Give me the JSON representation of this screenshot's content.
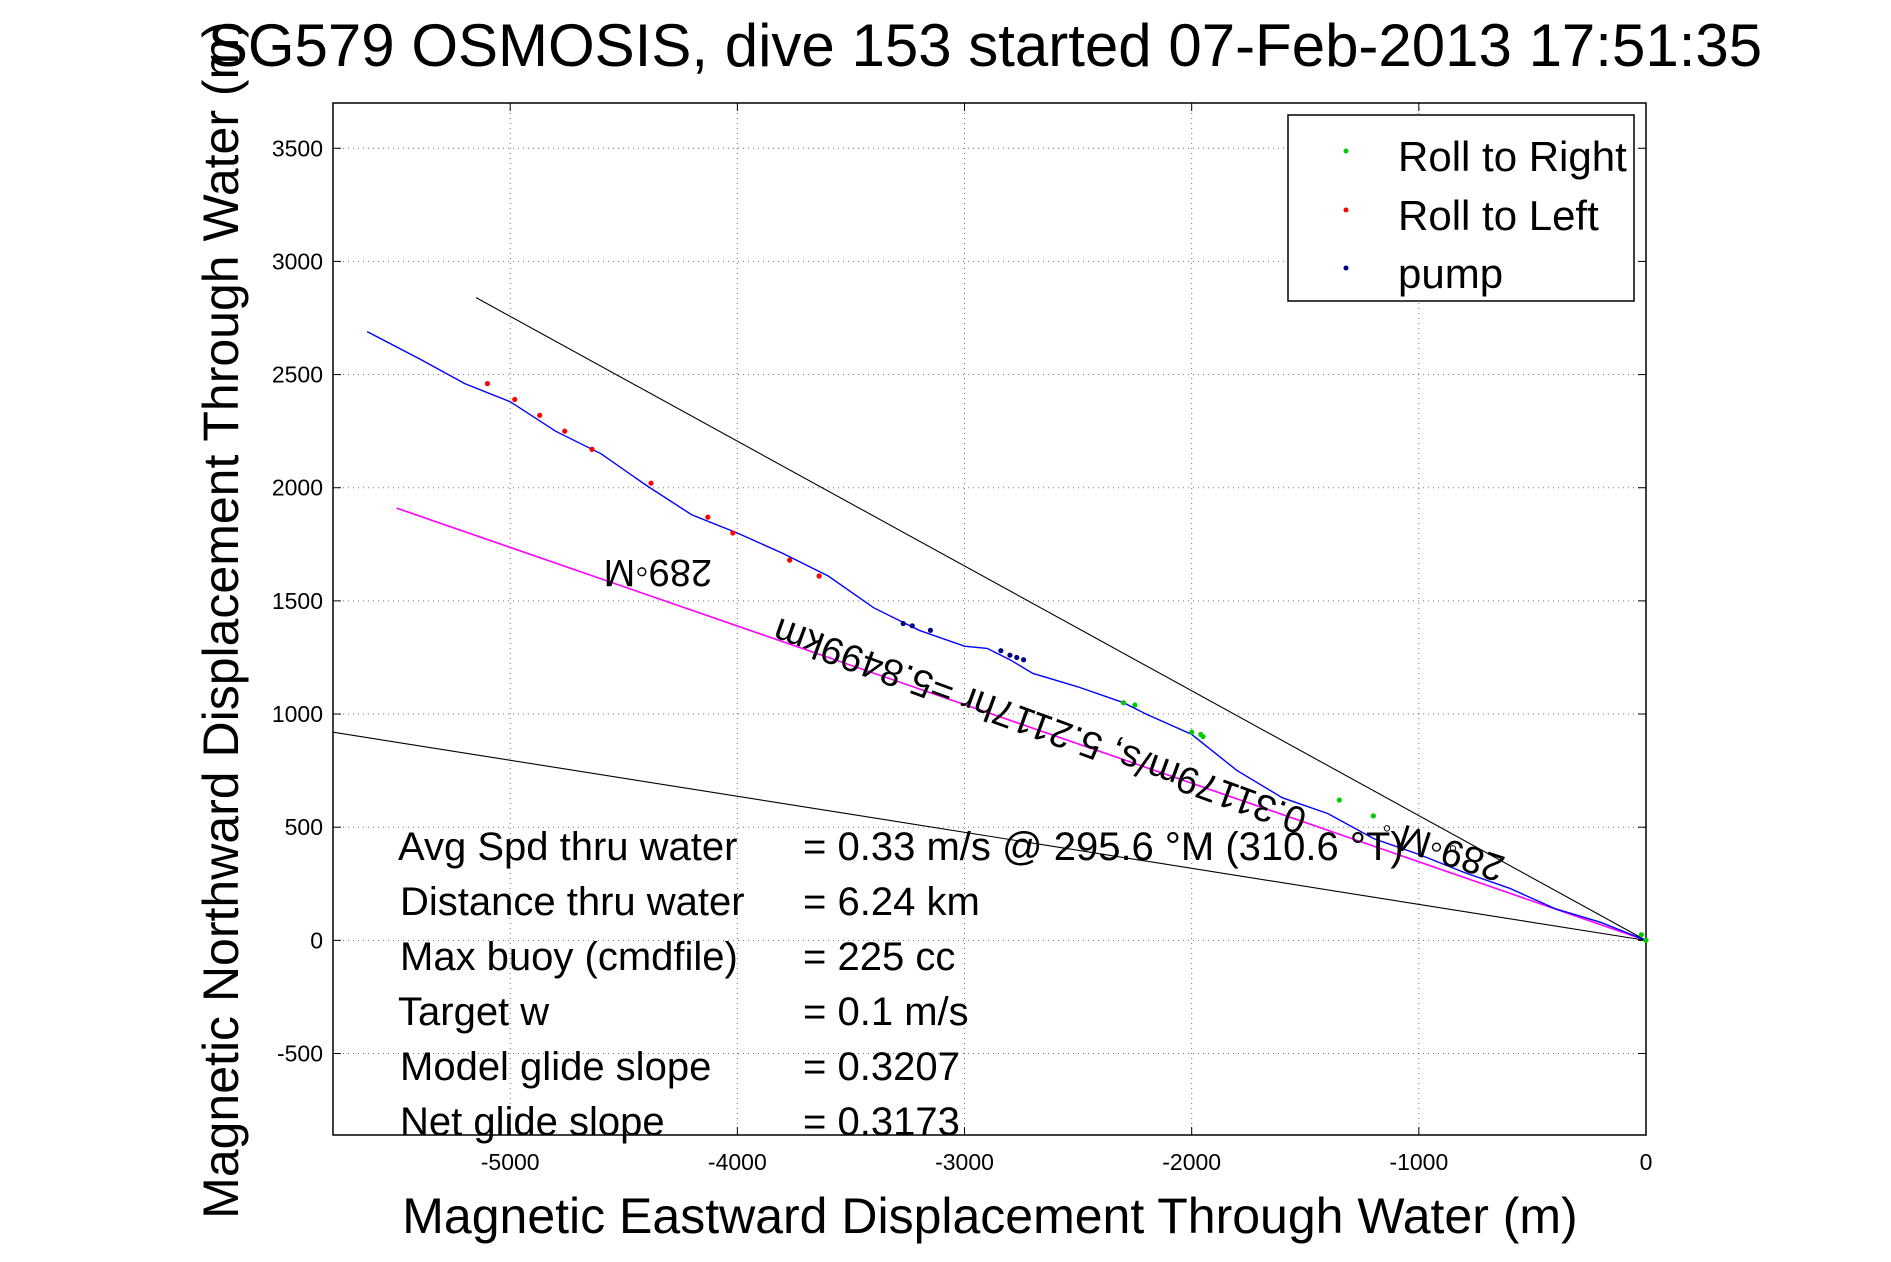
{
  "chart_data": {
    "type": "line",
    "title": "SG579 OSMOSIS, dive 153 started 07-Feb-2013 17:51:35",
    "xlabel": "Magnetic Eastward Displacement Through Water (m)",
    "ylabel": "Magnetic Northward Displacement Through Water (m)",
    "xlim": [
      -5780,
      0
    ],
    "ylim": [
      -860,
      3700
    ],
    "xticks": [
      -5000,
      -4000,
      -3000,
      -2000,
      -1000,
      0
    ],
    "yticks": [
      -500,
      0,
      500,
      1000,
      1500,
      2000,
      2500,
      3000,
      3500
    ],
    "grid": true,
    "legend_position": "top-right",
    "legend": [
      {
        "name": "Roll to Right",
        "color": "#00cc00"
      },
      {
        "name": "Roll to Left",
        "color": "#ff0000"
      },
      {
        "name": "pump",
        "color": "#000080"
      }
    ],
    "track": {
      "color": "#0000ff",
      "x": [
        0,
        -200,
        -400,
        -600,
        -800,
        -1000,
        -1200,
        -1400,
        -1600,
        -1800,
        -2000,
        -2200,
        -2300,
        -2500,
        -2700,
        -2800,
        -2900,
        -3000,
        -3200,
        -3400,
        -3600,
        -3800,
        -4000,
        -4200,
        -4400,
        -4600,
        -4800,
        -5000,
        -5200,
        -5400,
        -5630
      ],
      "y": [
        0,
        80,
        140,
        230,
        300,
        380,
        450,
        560,
        630,
        750,
        910,
        1000,
        1050,
        1120,
        1180,
        1240,
        1290,
        1300,
        1370,
        1470,
        1610,
        1710,
        1800,
        1880,
        2010,
        2150,
        2250,
        2380,
        2460,
        2570,
        2690
      ]
    },
    "markers": {
      "roll_right": {
        "x": [
          -1950,
          -1960,
          -2000,
          -2250,
          -2300,
          -1200,
          -1350,
          -20,
          0
        ],
        "y": [
          900,
          910,
          920,
          1040,
          1050,
          550,
          620,
          25,
          0
        ]
      },
      "roll_left": {
        "x": [
          -5100,
          -4980,
          -4870,
          -4760,
          -4640,
          -4380,
          -4130,
          -4020,
          -3770,
          -3640
        ],
        "y": [
          2460,
          2390,
          2320,
          2250,
          2170,
          2020,
          1870,
          1800,
          1680,
          1610
        ]
      },
      "pump": {
        "x": [
          -3270,
          -3230,
          -3150,
          -2840,
          -2800,
          -2770,
          -2740
        ],
        "y": [
          1400,
          1390,
          1370,
          1280,
          1260,
          1250,
          1240
        ]
      }
    },
    "reference_lines": [
      {
        "name": "magenta",
        "color": "#ff00ff",
        "x": [
          0,
          -5500
        ],
        "y": [
          0,
          1910
        ]
      },
      {
        "name": "black-upper",
        "color": "#000000",
        "x": [
          0,
          -5150
        ],
        "y": [
          0,
          2840
        ]
      },
      {
        "name": "black-lower",
        "color": "#000000",
        "x": [
          0,
          -5780
        ],
        "y": [
          0,
          920
        ]
      }
    ],
    "heading_labels": [
      {
        "text": "289◦M",
        "x": -4350,
        "y": 1680,
        "angle": 180
      },
      {
        "text": "289◦M",
        "x": -840,
        "y": 440,
        "angle": 198
      },
      {
        "text": "0.31179m/s, 5.2117hr =5.8499km",
        "x": -2650,
        "y": 1000,
        "angle": 200
      },
      {
        "text": "◦",
        "x": -1140,
        "y": 460,
        "angle": 0
      },
      {
        "text": "◦",
        "x": -850,
        "y": 370,
        "angle": 0
      }
    ],
    "annotations": [
      {
        "label": "Avg Spd thru water",
        "value": "=  0.33 m/s @ 295.6 °M (310.6 °T)"
      },
      {
        "label": "Distance thru water",
        "value": "=  6.24 km"
      },
      {
        "label": "Max buoy (cmdfile)",
        "value": "= 225 cc"
      },
      {
        "label": "Target w",
        "value": "= 0.1 m/s"
      },
      {
        "label": "Model glide slope",
        "value": "= 0.3207"
      },
      {
        "label": "Net glide slope",
        "value": "= 0.3173"
      }
    ]
  }
}
